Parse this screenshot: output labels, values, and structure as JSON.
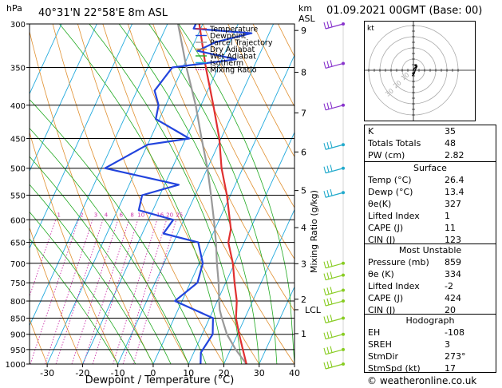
{
  "header": {
    "location": "40°31'N  22°58'E  8m  ASL",
    "date": "01.09.2021  00GMT  (Base: 00)",
    "copyright": "© weatheronline.co.uk"
  },
  "chart_data": {
    "type": "line",
    "title": "40°31'N  22°58'E  8m  ASL",
    "xlabel": "Dewpoint / Temperature (°C)",
    "ylabel": "hPa",
    "y2label": "Mixing Ratio (g/kg)",
    "km_label": "km\nASL",
    "xlim": [
      -35,
      40
    ],
    "ylim": [
      1000,
      300
    ],
    "x_ticks": [
      -30,
      -20,
      -10,
      0,
      10,
      20,
      30,
      40
    ],
    "pressure_ticks": [
      300,
      350,
      400,
      450,
      500,
      550,
      600,
      650,
      700,
      750,
      800,
      850,
      900,
      950,
      1000
    ],
    "km_ticks": [
      {
        "label": "9",
        "p": 307
      },
      {
        "label": "8",
        "p": 356
      },
      {
        "label": "7",
        "p": 411
      },
      {
        "label": "6",
        "p": 472
      },
      {
        "label": "5",
        "p": 541
      },
      {
        "label": "4",
        "p": 617
      },
      {
        "label": "3",
        "p": 701
      },
      {
        "label": "2",
        "p": 795
      },
      {
        "label": "1",
        "p": 898
      }
    ],
    "lcl": {
      "label": "LCL",
      "p": 825
    },
    "mixing_ratio_labels": [
      "1",
      "2",
      "3",
      "4",
      "6",
      "8",
      "10",
      "16",
      "20",
      "25"
    ],
    "legend": {
      "placement": "top-center",
      "entries": [
        {
          "name": "Temperature",
          "color": "#e03030",
          "style": "solid"
        },
        {
          "name": "Dewpoint",
          "color": "#2244dd",
          "style": "solid"
        },
        {
          "name": "Parcel Trajectory",
          "color": "#999999",
          "style": "solid"
        },
        {
          "name": "Dry Adiabat",
          "color": "#e09030",
          "style": "solid"
        },
        {
          "name": "Wet Adiabat",
          "color": "#22aa22",
          "style": "solid"
        },
        {
          "name": "Isotherm",
          "color": "#22aadd",
          "style": "solid"
        },
        {
          "name": "Mixing Ratio",
          "color": "#cc33aa",
          "style": "dotted"
        }
      ]
    },
    "series": [
      {
        "name": "Temperature",
        "points": [
          {
            "p": 1000,
            "t": 26.4
          },
          {
            "p": 950,
            "t": 23.5
          },
          {
            "p": 900,
            "t": 20.5
          },
          {
            "p": 850,
            "t": 17.5
          },
          {
            "p": 800,
            "t": 15.5
          },
          {
            "p": 750,
            "t": 12.5
          },
          {
            "p": 700,
            "t": 9.5
          },
          {
            "p": 650,
            "t": 5.5
          },
          {
            "p": 620,
            "t": 4.5
          },
          {
            "p": 600,
            "t": 3.0
          },
          {
            "p": 550,
            "t": -1.0
          },
          {
            "p": 500,
            "t": -6.0
          },
          {
            "p": 450,
            "t": -10.5
          },
          {
            "p": 400,
            "t": -16.5
          },
          {
            "p": 350,
            "t": -23.5
          },
          {
            "p": 300,
            "t": -31.0
          }
        ]
      },
      {
        "name": "Dewpoint",
        "points": [
          {
            "p": 1000,
            "t": 13.4
          },
          {
            "p": 960,
            "t": 12.0
          },
          {
            "p": 900,
            "t": 13.0
          },
          {
            "p": 850,
            "t": 11.0
          },
          {
            "p": 800,
            "t": -2.0
          },
          {
            "p": 750,
            "t": 2.0
          },
          {
            "p": 700,
            "t": 1.0
          },
          {
            "p": 650,
            "t": -3.0
          },
          {
            "p": 630,
            "t": -14.0
          },
          {
            "p": 600,
            "t": -13.0
          },
          {
            "p": 580,
            "t": -24.0
          },
          {
            "p": 550,
            "t": -25.0
          },
          {
            "p": 530,
            "t": -16.0
          },
          {
            "p": 500,
            "t": -39.0
          },
          {
            "p": 460,
            "t": -30.0
          },
          {
            "p": 450,
            "t": -19.0
          },
          {
            "p": 420,
            "t": -31.0
          },
          {
            "p": 400,
            "t": -32.0
          },
          {
            "p": 380,
            "t": -35.0
          },
          {
            "p": 350,
            "t": -33.0
          },
          {
            "p": 340,
            "t": -16.0
          },
          {
            "p": 330,
            "t": -28.0
          },
          {
            "p": 320,
            "t": -24.0
          },
          {
            "p": 310,
            "t": -15.0
          },
          {
            "p": 305,
            "t": -32.0
          },
          {
            "p": 300,
            "t": -32.0
          }
        ]
      },
      {
        "name": "Parcel Trajectory",
        "points": [
          {
            "p": 1000,
            "t": 26.4
          },
          {
            "p": 950,
            "t": 21.5
          },
          {
            "p": 900,
            "t": 17.0
          },
          {
            "p": 850,
            "t": 13.5
          },
          {
            "p": 825,
            "t": 11.8
          },
          {
            "p": 800,
            "t": 10.5
          },
          {
            "p": 750,
            "t": 8.0
          },
          {
            "p": 700,
            "t": 5.0
          },
          {
            "p": 650,
            "t": 2.0
          },
          {
            "p": 600,
            "t": -1.5
          },
          {
            "p": 550,
            "t": -5.5
          },
          {
            "p": 500,
            "t": -10.0
          },
          {
            "p": 450,
            "t": -15.5
          },
          {
            "p": 400,
            "t": -21.5
          },
          {
            "p": 350,
            "t": -29.0
          },
          {
            "p": 300,
            "t": -37.0
          }
        ]
      }
    ]
  },
  "hodograph": {
    "title": "Hodograph",
    "corner_label": "kt",
    "ring_labels": [
      "10",
      "20",
      "30"
    ],
    "trace_kt": [
      [
        0,
        0
      ],
      [
        1,
        -2
      ],
      [
        3,
        -3
      ],
      [
        2,
        -1
      ],
      [
        1,
        2
      ],
      [
        0,
        4
      ],
      [
        -1,
        5
      ]
    ]
  },
  "indices": {
    "rows": [
      {
        "label": "K",
        "value": "35"
      },
      {
        "label": "Totals Totals",
        "value": "48"
      },
      {
        "label": "PW (cm)",
        "value": "2.82"
      }
    ]
  },
  "surface": {
    "title": "Surface",
    "rows": [
      {
        "label": "Temp (°C)",
        "value": "26.4"
      },
      {
        "label": "Dewp (°C)",
        "value": "13.4"
      },
      {
        "label": "θe(K)",
        "value": "327"
      },
      {
        "label": "Lifted Index",
        "value": "1"
      },
      {
        "label": "CAPE (J)",
        "value": "11"
      },
      {
        "label": "CIN (J)",
        "value": "123"
      }
    ]
  },
  "most_unstable": {
    "title": "Most Unstable",
    "rows": [
      {
        "label": "Pressure (mb)",
        "value": "859"
      },
      {
        "label": "θe (K)",
        "value": "334"
      },
      {
        "label": "Lifted Index",
        "value": "-2"
      },
      {
        "label": "CAPE (J)",
        "value": "424"
      },
      {
        "label": "CIN (J)",
        "value": "20"
      }
    ]
  },
  "hodograph_stats": {
    "title": "Hodograph",
    "rows": [
      {
        "label": "EH",
        "value": "-108"
      },
      {
        "label": "SREH",
        "value": "3"
      },
      {
        "label": "StmDir",
        "value": "273°"
      },
      {
        "label": "StmSpd (kt)",
        "value": "17"
      }
    ]
  },
  "colors": {
    "temperature": "#e03030",
    "dewpoint": "#2244dd",
    "parcel": "#999999",
    "dry_adiabat": "#e09030",
    "wet_adiabat": "#22aa22",
    "isotherm": "#22aadd",
    "mixing_ratio": "#cc33aa",
    "wind_upper": "#8833cc",
    "wind_mid": "#22aacc",
    "wind_low": "#88cc22"
  }
}
